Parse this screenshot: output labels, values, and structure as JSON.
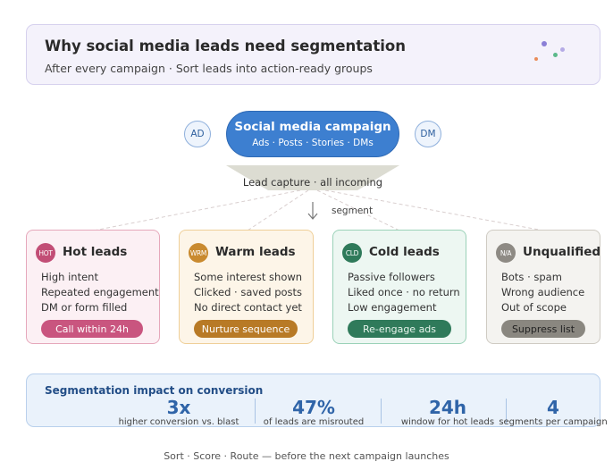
{
  "header": {
    "title": "Why social media leads need segmentation",
    "subtitle": "After every campaign · Sort leads into action-ready groups"
  },
  "campaign": {
    "left_badge": "AD",
    "right_badge": "DM",
    "title": "Social media campaign",
    "channels": "Ads · Posts · Stories · DMs"
  },
  "funnel": {
    "label": "Lead capture · all incoming",
    "segment_label": "segment"
  },
  "segments": [
    {
      "icon": "HOT",
      "title": "Hot leads",
      "lines": [
        "High intent",
        "Repeated engagement",
        "DM or form filled"
      ],
      "action": "Call within 24h",
      "colors": {
        "bg": "#fcf0f4",
        "border": "#e6a8bb",
        "icon": "#c24e76",
        "action_bg": "#c9557f",
        "action_text": "#ffffff"
      }
    },
    {
      "icon": "WRM",
      "title": "Warm leads",
      "lines": [
        "Some interest shown",
        "Clicked · saved posts",
        "No direct contact yet"
      ],
      "action": "Nurture sequence",
      "colors": {
        "bg": "#fdf5e8",
        "border": "#efcf98",
        "icon": "#c98a2f",
        "action_bg": "#b87a26",
        "action_text": "#ffffff"
      }
    },
    {
      "icon": "CLD",
      "title": "Cold leads",
      "lines": [
        "Passive followers",
        "Liked once · no return",
        "Low engagement"
      ],
      "action": "Re-engage ads",
      "colors": {
        "bg": "#edf7f2",
        "border": "#9bd2b8",
        "icon": "#2f7a5a",
        "action_bg": "#2f7a5a",
        "action_text": "#e6f4ec"
      }
    },
    {
      "icon": "N/A",
      "title": "Unqualified",
      "lines": [
        "Bots · spam",
        "Wrong audience",
        "Out of scope"
      ],
      "action": "Suppress list",
      "colors": {
        "bg": "#f4f3f0",
        "border": "#cfcbc3",
        "icon": "#8e8a84",
        "action_bg": "#8a8780",
        "action_text": "#222222"
      }
    }
  ],
  "impact": {
    "title": "Segmentation impact on conversion",
    "stats": [
      {
        "value": "3x",
        "label": "higher conversion vs. blast"
      },
      {
        "value": "47%",
        "label": "of leads are misrouted"
      },
      {
        "value": "24h",
        "label": "window for hot leads"
      },
      {
        "value": "4",
        "label": "segments per campaign"
      }
    ]
  },
  "footer": "Sort · Score · Route — before the next campaign launches",
  "colors": {
    "campaign": "#3d7fd0",
    "funnel": "#dcdcd2",
    "impact_accent": "#2f64a8"
  }
}
